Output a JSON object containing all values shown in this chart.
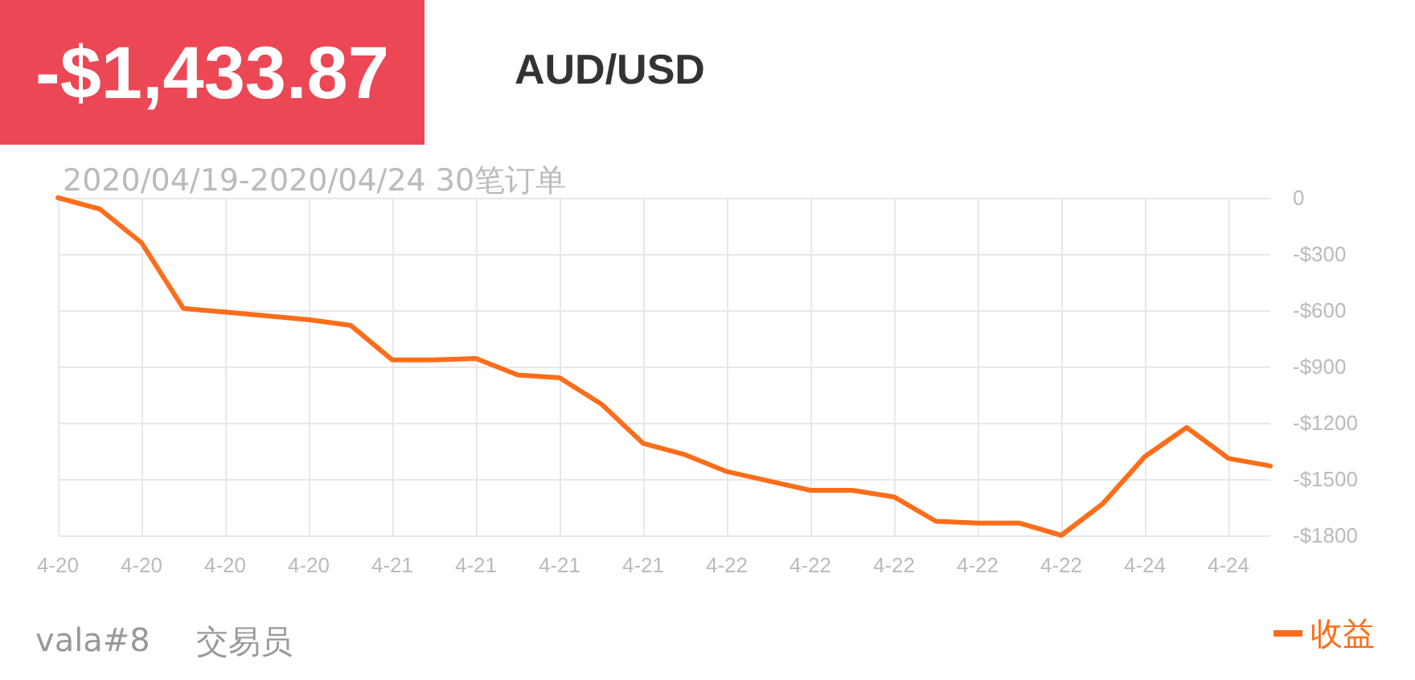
{
  "chart_data": {
    "type": "line",
    "title": "AUD/USD",
    "subtitle": "2020/04/19-2020/04/24 30笔订单",
    "annotations": [
      "-$1,433.87",
      "vala#8",
      "交易员"
    ],
    "categories": [
      "4-20",
      null,
      "4-20",
      null,
      "4-20",
      null,
      "4-20",
      null,
      "4-21",
      null,
      "4-21",
      null,
      "4-21",
      null,
      "4-21",
      null,
      "4-22",
      null,
      "4-22",
      null,
      "4-22",
      null,
      "4-22",
      null,
      "4-22",
      null,
      "4-24",
      null,
      "4-24",
      null
    ],
    "series": [
      {
        "name": "收益",
        "color": "#ff6d1a",
        "values": [
          0,
          -60,
          -240,
          -590,
          -610,
          -630,
          -650,
          -680,
          -865,
          -865,
          -857,
          -945,
          -960,
          -1100,
          -1310,
          -1370,
          -1460,
          -1510,
          -1560,
          -1560,
          -1595,
          -1725,
          -1735,
          -1735,
          -1800,
          -1630,
          -1380,
          -1225,
          -1390,
          -1430
        ]
      }
    ],
    "ylim": [
      -1800,
      0
    ],
    "yticks": [
      {
        "value": 0,
        "label": "0"
      },
      {
        "value": -300,
        "label": "-$300"
      },
      {
        "value": -600,
        "label": "-$600"
      },
      {
        "value": -900,
        "label": "-$900"
      },
      {
        "value": -1200,
        "label": "-$1200"
      },
      {
        "value": -1500,
        "label": "-$1500"
      },
      {
        "value": -1800,
        "label": "-$1800"
      }
    ],
    "grid": true,
    "legend": "bottom right"
  }
}
